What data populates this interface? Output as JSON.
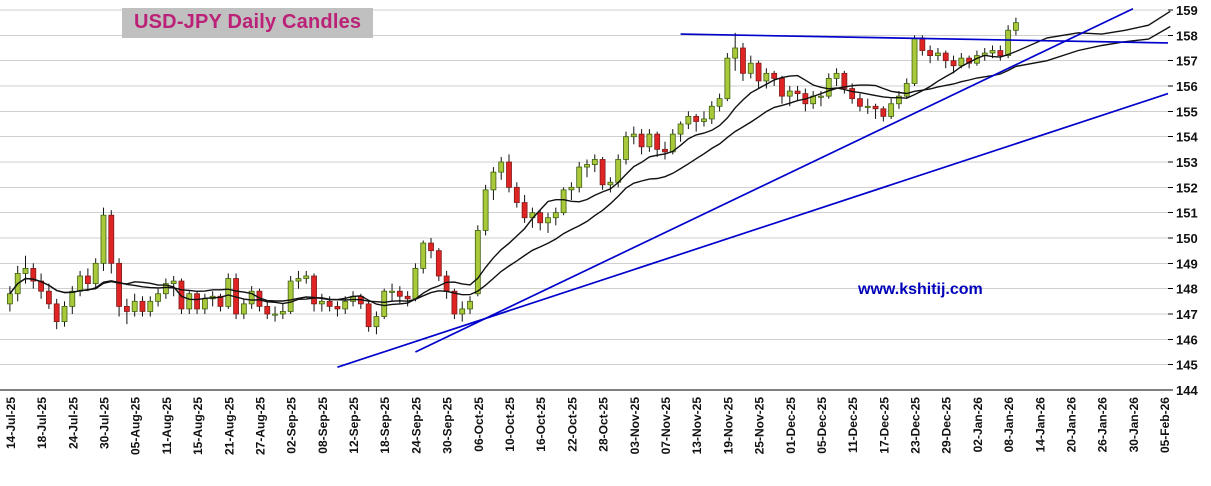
{
  "header": {
    "title": "USD-JPY Daily Candles",
    "title_color": "#bb2277",
    "title_bg": "#c0c0c0"
  },
  "watermark": {
    "text": "www.kshitij.com",
    "color": "#0000bb"
  },
  "chart_data": {
    "type": "candlestick",
    "title": "USD-JPY Daily Candles",
    "ylabel": "",
    "xlabel": "",
    "ylim": [
      144,
      159
    ],
    "y_ticks": [
      159,
      158,
      157,
      156,
      155,
      154,
      153,
      152,
      151,
      150,
      149,
      148,
      147,
      146,
      145,
      144
    ],
    "grid": "horizontal",
    "legend": "none",
    "x_tick_interval": 4,
    "total_slots": 149,
    "x_tick_labels": [
      "14-Jul-25",
      "18-Jul-25",
      "24-Jul-25",
      "30-Jul-25",
      "05-Aug-25",
      "11-Aug-25",
      "15-Aug-25",
      "21-Aug-25",
      "27-Aug-25",
      "02-Sep-25",
      "08-Sep-25",
      "12-Sep-25",
      "18-Sep-25",
      "24-Sep-25",
      "30-Sep-25",
      "06-Oct-25",
      "10-Oct-25",
      "16-Oct-25",
      "22-Oct-25",
      "28-Oct-25",
      "03-Nov-25",
      "07-Nov-25",
      "13-Nov-25",
      "19-Nov-25",
      "25-Nov-25",
      "01-Dec-25",
      "05-Dec-25",
      "11-Dec-25",
      "17-Dec-25",
      "23-Dec-25",
      "29-Dec-25",
      "02-Jan-26",
      "08-Jan-26",
      "14-Jan-26",
      "20-Jan-26",
      "26-Jan-26",
      "30-Jan-26",
      "05-Feb-26"
    ],
    "candles_ohlc": [
      [
        147.4,
        148.1,
        147.1,
        147.8
      ],
      [
        147.8,
        148.9,
        147.5,
        148.6
      ],
      [
        148.6,
        149.3,
        148.2,
        148.8
      ],
      [
        148.8,
        149.0,
        148.0,
        148.3
      ],
      [
        148.3,
        148.6,
        147.6,
        147.9
      ],
      [
        147.9,
        148.2,
        147.2,
        147.4
      ],
      [
        147.4,
        147.6,
        146.4,
        146.7
      ],
      [
        146.7,
        147.5,
        146.5,
        147.3
      ],
      [
        147.3,
        148.1,
        147.0,
        147.9
      ],
      [
        147.9,
        148.7,
        147.7,
        148.5
      ],
      [
        148.5,
        148.8,
        147.9,
        148.2
      ],
      [
        148.2,
        149.2,
        148.0,
        149.0
      ],
      [
        149.0,
        151.2,
        148.7,
        150.9
      ],
      [
        150.9,
        151.1,
        148.6,
        149.0
      ],
      [
        149.0,
        149.2,
        146.9,
        147.3
      ],
      [
        147.3,
        147.6,
        146.6,
        147.1
      ],
      [
        147.1,
        147.8,
        146.9,
        147.5
      ],
      [
        147.5,
        147.7,
        146.9,
        147.1
      ],
      [
        147.1,
        147.7,
        146.9,
        147.5
      ],
      [
        147.5,
        148.0,
        147.3,
        147.8
      ],
      [
        147.8,
        148.4,
        147.6,
        148.2
      ],
      [
        148.2,
        148.5,
        147.7,
        148.3
      ],
      [
        148.3,
        148.4,
        147.0,
        147.2
      ],
      [
        147.2,
        147.9,
        147.0,
        147.8
      ],
      [
        147.8,
        147.9,
        147.0,
        147.2
      ],
      [
        147.2,
        147.8,
        147.0,
        147.6
      ],
      [
        147.6,
        147.9,
        147.3,
        147.7
      ],
      [
        147.7,
        147.8,
        147.1,
        147.3
      ],
      [
        147.3,
        148.6,
        147.2,
        148.4
      ],
      [
        148.4,
        148.6,
        146.8,
        147.0
      ],
      [
        147.0,
        147.6,
        146.8,
        147.4
      ],
      [
        147.4,
        148.1,
        147.2,
        147.9
      ],
      [
        147.9,
        148.0,
        147.1,
        147.3
      ],
      [
        147.3,
        147.5,
        146.8,
        147.0
      ],
      [
        147.0,
        147.3,
        146.7,
        147.0
      ],
      [
        147.0,
        147.4,
        146.8,
        147.1
      ],
      [
        147.1,
        148.5,
        147.0,
        148.3
      ],
      [
        148.3,
        148.7,
        148.0,
        148.4
      ],
      [
        148.4,
        148.7,
        148.2,
        148.5
      ],
      [
        148.5,
        148.6,
        147.1,
        147.4
      ],
      [
        147.4,
        147.8,
        147.1,
        147.5
      ],
      [
        147.5,
        147.7,
        147.1,
        147.3
      ],
      [
        147.3,
        147.5,
        146.9,
        147.2
      ],
      [
        147.2,
        147.7,
        147.0,
        147.5
      ],
      [
        147.5,
        147.9,
        147.3,
        147.7
      ],
      [
        147.7,
        147.8,
        147.2,
        147.4
      ],
      [
        147.4,
        147.5,
        146.3,
        146.5
      ],
      [
        146.5,
        147.1,
        146.2,
        146.9
      ],
      [
        146.9,
        148.0,
        146.8,
        147.9
      ],
      [
        147.9,
        148.2,
        147.5,
        147.9
      ],
      [
        147.9,
        148.1,
        147.4,
        147.7
      ],
      [
        147.7,
        147.9,
        147.3,
        147.6
      ],
      [
        147.6,
        149.0,
        147.5,
        148.8
      ],
      [
        148.8,
        149.9,
        148.6,
        149.8
      ],
      [
        149.8,
        150.0,
        149.2,
        149.5
      ],
      [
        149.5,
        149.6,
        148.3,
        148.5
      ],
      [
        148.5,
        148.7,
        147.6,
        147.9
      ],
      [
        147.9,
        148.0,
        146.8,
        147.0
      ],
      [
        147.0,
        147.5,
        146.7,
        147.2
      ],
      [
        147.2,
        147.7,
        147.0,
        147.5
      ],
      [
        147.8,
        150.5,
        147.7,
        150.3
      ],
      [
        150.3,
        152.1,
        150.1,
        151.9
      ],
      [
        151.9,
        152.8,
        151.5,
        152.6
      ],
      [
        152.6,
        153.2,
        152.3,
        153.0
      ],
      [
        153.0,
        153.3,
        151.8,
        152.0
      ],
      [
        152.0,
        152.2,
        151.2,
        151.4
      ],
      [
        151.4,
        151.7,
        150.6,
        150.8
      ],
      [
        150.8,
        151.2,
        150.4,
        151.0
      ],
      [
        151.0,
        151.1,
        150.3,
        150.6
      ],
      [
        150.6,
        151.0,
        150.2,
        150.8
      ],
      [
        150.8,
        151.2,
        150.5,
        151.0
      ],
      [
        151.0,
        152.0,
        150.9,
        151.9
      ],
      [
        151.9,
        152.2,
        151.5,
        152.0
      ],
      [
        152.0,
        153.0,
        151.8,
        152.8
      ],
      [
        152.8,
        153.1,
        152.4,
        152.9
      ],
      [
        152.9,
        153.3,
        152.6,
        153.1
      ],
      [
        153.1,
        153.2,
        151.9,
        152.1
      ],
      [
        152.1,
        152.4,
        151.8,
        152.2
      ],
      [
        152.2,
        153.3,
        152.0,
        153.1
      ],
      [
        153.1,
        154.2,
        152.9,
        154.0
      ],
      [
        154.0,
        154.4,
        153.7,
        154.1
      ],
      [
        154.1,
        154.3,
        153.3,
        153.6
      ],
      [
        153.6,
        154.3,
        153.4,
        154.1
      ],
      [
        154.1,
        154.2,
        153.2,
        153.5
      ],
      [
        153.5,
        153.8,
        153.1,
        153.4
      ],
      [
        153.4,
        154.3,
        153.3,
        154.1
      ],
      [
        154.1,
        154.6,
        153.8,
        154.5
      ],
      [
        154.5,
        155.0,
        154.3,
        154.8
      ],
      [
        154.8,
        154.9,
        154.2,
        154.6
      ],
      [
        154.6,
        155.0,
        154.4,
        154.7
      ],
      [
        154.7,
        155.4,
        154.5,
        155.2
      ],
      [
        155.2,
        155.7,
        155.0,
        155.5
      ],
      [
        155.5,
        157.3,
        155.4,
        157.1
      ],
      [
        157.1,
        158.1,
        156.6,
        157.5
      ],
      [
        157.5,
        157.7,
        156.2,
        156.5
      ],
      [
        156.5,
        157.2,
        156.3,
        156.9
      ],
      [
        156.9,
        157.0,
        155.9,
        156.2
      ],
      [
        156.2,
        156.7,
        155.9,
        156.5
      ],
      [
        156.5,
        156.6,
        156.0,
        156.3
      ],
      [
        156.3,
        156.4,
        155.3,
        155.6
      ],
      [
        155.6,
        156.0,
        155.2,
        155.8
      ],
      [
        155.8,
        156.0,
        155.4,
        155.7
      ],
      [
        155.7,
        155.9,
        155.0,
        155.3
      ],
      [
        155.3,
        155.8,
        155.1,
        155.6
      ],
      [
        155.6,
        155.8,
        155.2,
        155.6
      ],
      [
        155.6,
        156.5,
        155.5,
        156.3
      ],
      [
        156.3,
        156.7,
        156.0,
        156.5
      ],
      [
        156.5,
        156.6,
        155.7,
        155.9
      ],
      [
        155.9,
        156.1,
        155.3,
        155.5
      ],
      [
        155.5,
        155.7,
        155.0,
        155.2
      ],
      [
        155.2,
        155.5,
        154.9,
        155.2
      ],
      [
        155.2,
        155.3,
        154.7,
        155.1
      ],
      [
        155.1,
        155.2,
        154.6,
        154.8
      ],
      [
        154.8,
        155.5,
        154.7,
        155.3
      ],
      [
        155.3,
        155.8,
        155.1,
        155.6
      ],
      [
        155.6,
        156.3,
        155.5,
        156.1
      ],
      [
        156.1,
        158.0,
        156.0,
        157.9
      ],
      [
        157.9,
        158.0,
        157.2,
        157.4
      ],
      [
        157.4,
        157.6,
        156.9,
        157.2
      ],
      [
        157.2,
        157.5,
        157.0,
        157.3
      ],
      [
        157.3,
        157.4,
        156.7,
        157.0
      ],
      [
        157.0,
        157.2,
        156.5,
        156.8
      ],
      [
        156.8,
        157.3,
        156.7,
        157.1
      ],
      [
        157.1,
        157.2,
        156.7,
        156.9
      ],
      [
        156.9,
        157.4,
        156.8,
        157.2
      ],
      [
        157.2,
        157.5,
        157.0,
        157.3
      ],
      [
        157.3,
        157.6,
        157.1,
        157.4
      ],
      [
        157.4,
        157.6,
        157.0,
        157.2
      ],
      [
        157.2,
        158.4,
        157.1,
        158.2
      ],
      [
        158.2,
        158.7,
        158.0,
        158.5
      ]
    ],
    "moving_averages": [
      {
        "name": "fast",
        "period": 10
      },
      {
        "name": "slow",
        "period": 20
      }
    ],
    "ma_extensions": {
      "fast": [
        [
          133,
          157.9
        ],
        [
          137,
          158.1
        ],
        [
          140,
          158.05
        ],
        [
          143,
          158.2
        ],
        [
          146,
          158.4
        ],
        [
          148.8,
          158.95
        ]
      ],
      "slow": [
        [
          133,
          157.0
        ],
        [
          137,
          157.4
        ],
        [
          140,
          157.6
        ],
        [
          143,
          157.75
        ],
        [
          146,
          157.85
        ],
        [
          148.8,
          158.35
        ]
      ]
    },
    "trendlines": [
      {
        "name": "lower-rising-support",
        "from": [
          42,
          144.9
        ],
        "to": [
          148.5,
          155.7
        ]
      },
      {
        "name": "steep-rising-support",
        "from": [
          52,
          145.5
        ],
        "to": [
          144,
          159.05
        ]
      },
      {
        "name": "horizontal-resistance",
        "from": [
          86,
          158.05
        ],
        "to": [
          148.5,
          157.7
        ]
      }
    ],
    "colors": {
      "up": "#a9c93a",
      "up_border": "#3f6212",
      "down": "#e02424",
      "down_border": "#7f1d1d",
      "wick": "#111111",
      "ma": "#111111",
      "trendline": "#0000cc",
      "grid": "#cfcfcf",
      "axis": "#000000",
      "label": "#111111"
    }
  }
}
